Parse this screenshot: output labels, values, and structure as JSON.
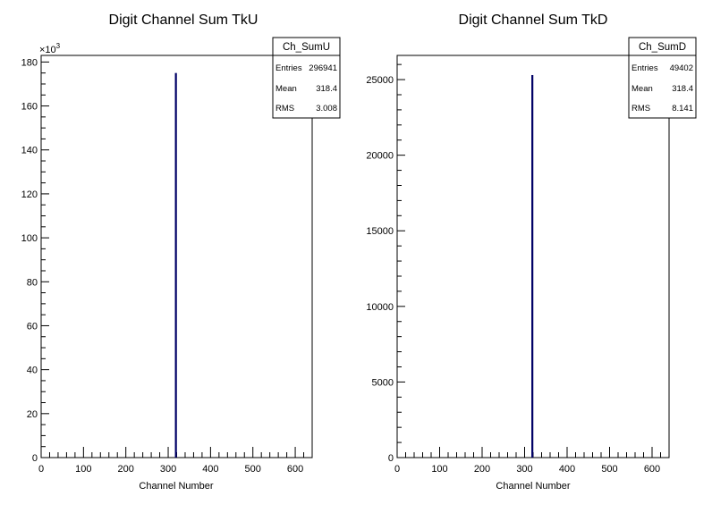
{
  "chart_data": [
    {
      "type": "histogram",
      "title": "Digit Channel Sum TkU",
      "xlabel": "Channel Number",
      "ylabel": "",
      "xlim": [
        0,
        640
      ],
      "ylim": [
        0,
        183000
      ],
      "y_multiplier_label": "×10",
      "y_multiplier_exp": "3",
      "x_ticks": [
        "0",
        "100",
        "200",
        "300",
        "400",
        "500",
        "600"
      ],
      "y_ticks": [
        "0",
        "20",
        "40",
        "60",
        "80",
        "100",
        "120",
        "140",
        "160",
        "180"
      ],
      "bars": [
        {
          "x": 318,
          "y": 175000
        }
      ],
      "bar_color": "#000066",
      "stats": {
        "name": "Ch_SumU",
        "entries_label": "Entries",
        "entries": "296941",
        "mean_label": "Mean",
        "mean": "318.4",
        "rms_label": "RMS",
        "rms": "3.008"
      }
    },
    {
      "type": "histogram",
      "title": "Digit Channel Sum TkD",
      "xlabel": "Channel Number",
      "ylabel": "",
      "xlim": [
        0,
        640
      ],
      "ylim": [
        0,
        26600
      ],
      "x_ticks": [
        "0",
        "100",
        "200",
        "300",
        "400",
        "500",
        "600"
      ],
      "y_ticks": [
        "0",
        "5000",
        "10000",
        "15000",
        "20000",
        "25000"
      ],
      "bars": [
        {
          "x": 318,
          "y": 25300
        }
      ],
      "bar_color": "#000066",
      "stats": {
        "name": "Ch_SumD",
        "entries_label": "Entries",
        "entries": "49402",
        "mean_label": "Mean",
        "mean": "318.4",
        "rms_label": "RMS",
        "rms": "8.141"
      }
    }
  ]
}
